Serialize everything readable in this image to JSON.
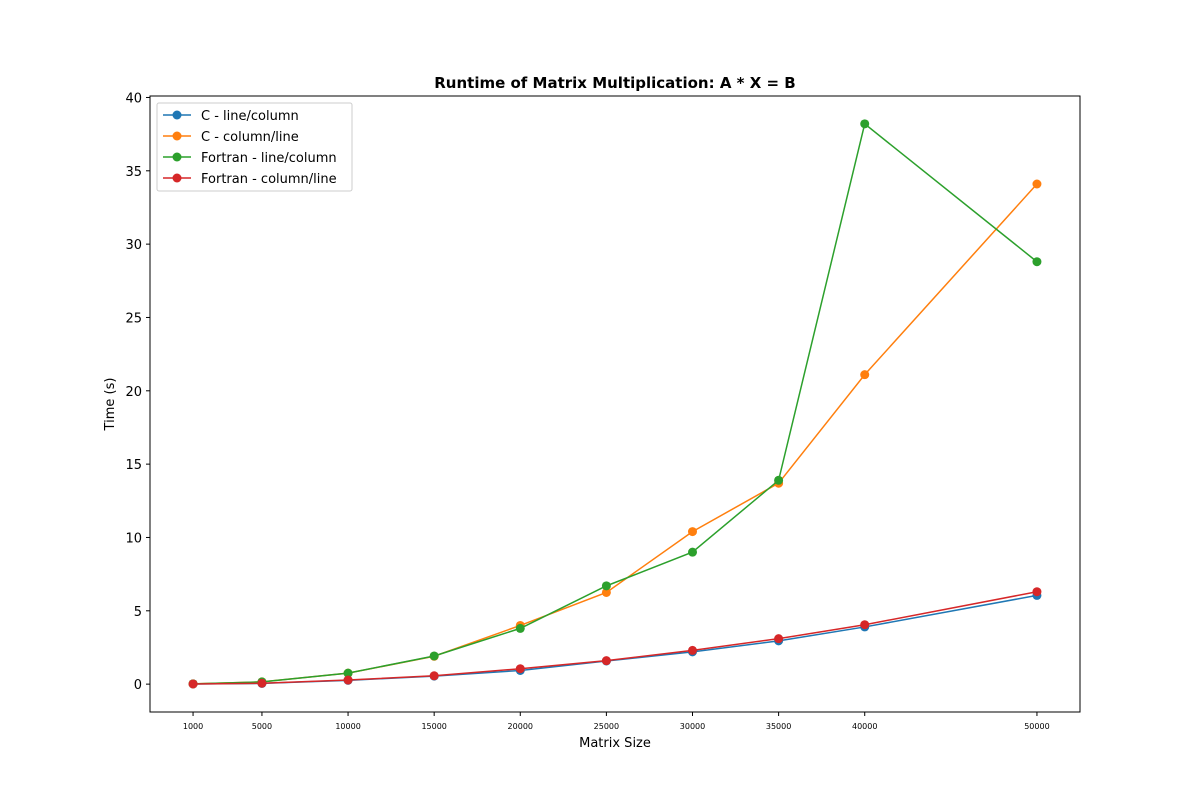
{
  "chart_data": {
    "type": "line",
    "title": "Runtime of Matrix Multiplication: A * X = B",
    "xlabel": "Matrix Size",
    "ylabel": "Time (s)",
    "x": [
      1000,
      5000,
      10000,
      15000,
      20000,
      25000,
      30000,
      35000,
      40000,
      50000
    ],
    "xlim": [
      -1500,
      52500
    ],
    "ylim": [
      -1.9,
      40.1
    ],
    "yticks": [
      0,
      5,
      10,
      15,
      20,
      25,
      30,
      35,
      40
    ],
    "grid": false,
    "legend_position": "top-left",
    "marker": "circle",
    "series": [
      {
        "name": "C - line/column",
        "color": "#1f77b4",
        "values": [
          0.01,
          0.05,
          0.26,
          0.55,
          0.93,
          1.58,
          2.2,
          2.95,
          3.9,
          6.05
        ]
      },
      {
        "name": "C - column/line",
        "color": "#ff7f0e",
        "values": [
          0.02,
          0.15,
          0.75,
          1.9,
          4.0,
          6.25,
          10.4,
          13.7,
          21.1,
          34.1
        ]
      },
      {
        "name": "Fortran - line/column",
        "color": "#2ca02c",
        "values": [
          0.02,
          0.15,
          0.75,
          1.92,
          3.8,
          6.7,
          9.0,
          13.9,
          38.2,
          28.8
        ]
      },
      {
        "name": "Fortran - column/line",
        "color": "#d62728",
        "values": [
          0.01,
          0.06,
          0.28,
          0.57,
          1.05,
          1.6,
          2.3,
          3.1,
          4.05,
          6.3
        ]
      }
    ]
  }
}
